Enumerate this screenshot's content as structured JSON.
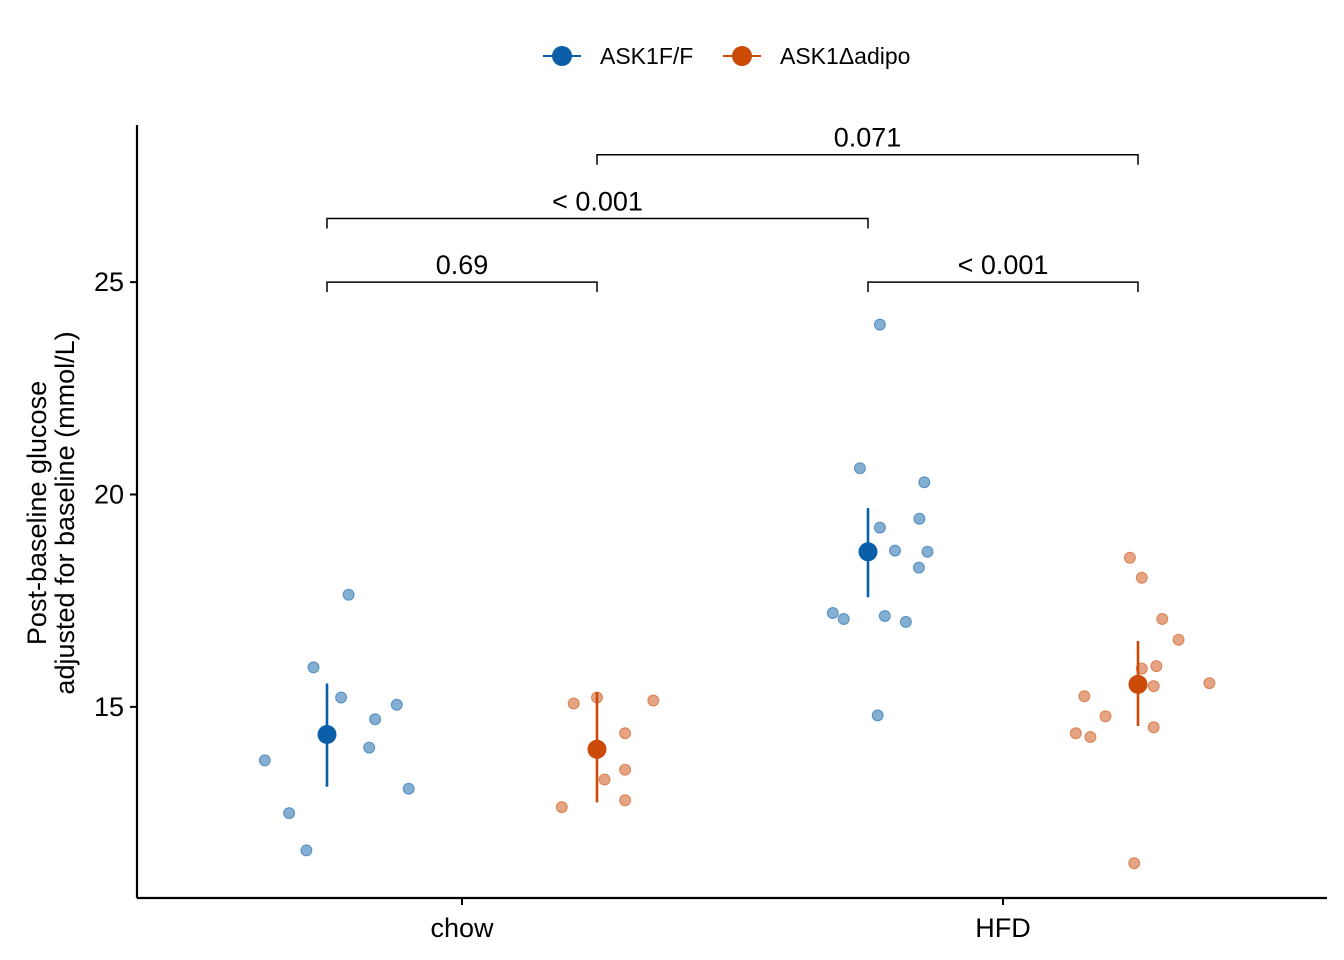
{
  "colors": {
    "ASK1F/F": "#0b5ea8",
    "ASK1Δadipo": "#cc4a07",
    "axis": "#000000"
  },
  "chart_data": {
    "type": "scatter",
    "title": "",
    "xlabel": "",
    "ylabel_lines": [
      "Post-baseline glucose",
      "adjusted for baseline (mmol/L)"
    ],
    "categories": [
      "chow",
      "HFD"
    ],
    "ylim": [
      10.5,
      28.7
    ],
    "yticks": [
      15,
      20,
      25
    ],
    "legend": {
      "position": "top",
      "entries": [
        "ASK1F/F",
        "ASK1Δadipo"
      ]
    },
    "grid": false,
    "series": [
      {
        "name": "ASK1F/F",
        "groups": [
          {
            "category": "chow",
            "mean": 14.35,
            "lower": 13.12,
            "upper": 15.55,
            "points": [
              {
                "x_offset": -0.115,
                "y": 13.74
              },
              {
                "x_offset": -0.07,
                "y": 12.5
              },
              {
                "x_offset": -0.038,
                "y": 11.62
              },
              {
                "x_offset": -0.025,
                "y": 15.93
              },
              {
                "x_offset": 0.026,
                "y": 15.22
              },
              {
                "x_offset": 0.04,
                "y": 17.64
              },
              {
                "x_offset": 0.078,
                "y": 14.04
              },
              {
                "x_offset": 0.089,
                "y": 14.71
              },
              {
                "x_offset": 0.129,
                "y": 15.05
              },
              {
                "x_offset": 0.151,
                "y": 13.07
              }
            ]
          },
          {
            "category": "HFD",
            "mean": 18.65,
            "lower": 17.58,
            "upper": 19.68,
            "points": [
              {
                "x_offset": -0.065,
                "y": 17.21
              },
              {
                "x_offset": -0.045,
                "y": 17.07
              },
              {
                "x_offset": -0.015,
                "y": 20.62
              },
              {
                "x_offset": 0.018,
                "y": 14.8
              },
              {
                "x_offset": 0.022,
                "y": 24.0
              },
              {
                "x_offset": 0.022,
                "y": 19.22
              },
              {
                "x_offset": 0.031,
                "y": 17.14
              },
              {
                "x_offset": 0.05,
                "y": 18.68
              },
              {
                "x_offset": 0.07,
                "y": 17.0
              },
              {
                "x_offset": 0.094,
                "y": 18.28
              },
              {
                "x_offset": 0.095,
                "y": 19.43
              },
              {
                "x_offset": 0.104,
                "y": 20.29
              },
              {
                "x_offset": 0.11,
                "y": 18.65
              }
            ]
          }
        ]
      },
      {
        "name": "ASK1Δadipo",
        "groups": [
          {
            "category": "chow",
            "mean": 14.0,
            "lower": 12.75,
            "upper": 15.35,
            "points": [
              {
                "x_offset": -0.065,
                "y": 12.64
              },
              {
                "x_offset": -0.043,
                "y": 15.08
              },
              {
                "x_offset": 0.0,
                "y": 15.22
              },
              {
                "x_offset": 0.014,
                "y": 13.29
              },
              {
                "x_offset": 0.052,
                "y": 14.38
              },
              {
                "x_offset": 0.052,
                "y": 13.52
              },
              {
                "x_offset": 0.052,
                "y": 12.8
              },
              {
                "x_offset": 0.104,
                "y": 15.15
              }
            ]
          },
          {
            "category": "HFD",
            "mean": 15.53,
            "lower": 14.55,
            "upper": 16.55,
            "points": [
              {
                "x_offset": -0.115,
                "y": 14.38
              },
              {
                "x_offset": -0.099,
                "y": 15.25
              },
              {
                "x_offset": -0.088,
                "y": 14.29
              },
              {
                "x_offset": -0.06,
                "y": 14.78
              },
              {
                "x_offset": -0.015,
                "y": 18.51
              },
              {
                "x_offset": -0.007,
                "y": 11.32
              },
              {
                "x_offset": 0.007,
                "y": 18.04
              },
              {
                "x_offset": 0.007,
                "y": 15.9
              },
              {
                "x_offset": 0.029,
                "y": 15.49
              },
              {
                "x_offset": 0.029,
                "y": 14.52
              },
              {
                "x_offset": 0.034,
                "y": 15.96
              },
              {
                "x_offset": 0.045,
                "y": 17.07
              },
              {
                "x_offset": 0.075,
                "y": 16.58
              },
              {
                "x_offset": 0.132,
                "y": 15.56
              }
            ]
          }
        ]
      }
    ],
    "comparisons": [
      {
        "from": [
          "chow",
          "ASK1F/F"
        ],
        "to": [
          "chow",
          "ASK1Δadipo"
        ],
        "y": 25.0,
        "label": "0.69"
      },
      {
        "from": [
          "HFD",
          "ASK1F/F"
        ],
        "to": [
          "HFD",
          "ASK1Δadipo"
        ],
        "y": 25.0,
        "label": "< 0.001"
      },
      {
        "from": [
          "chow",
          "ASK1F/F"
        ],
        "to": [
          "HFD",
          "ASK1F/F"
        ],
        "y": 26.5,
        "label": "< 0.001"
      },
      {
        "from": [
          "chow",
          "ASK1Δadipo"
        ],
        "to": [
          "HFD",
          "ASK1Δadipo"
        ],
        "y": 28.0,
        "label": "0.071"
      }
    ]
  }
}
